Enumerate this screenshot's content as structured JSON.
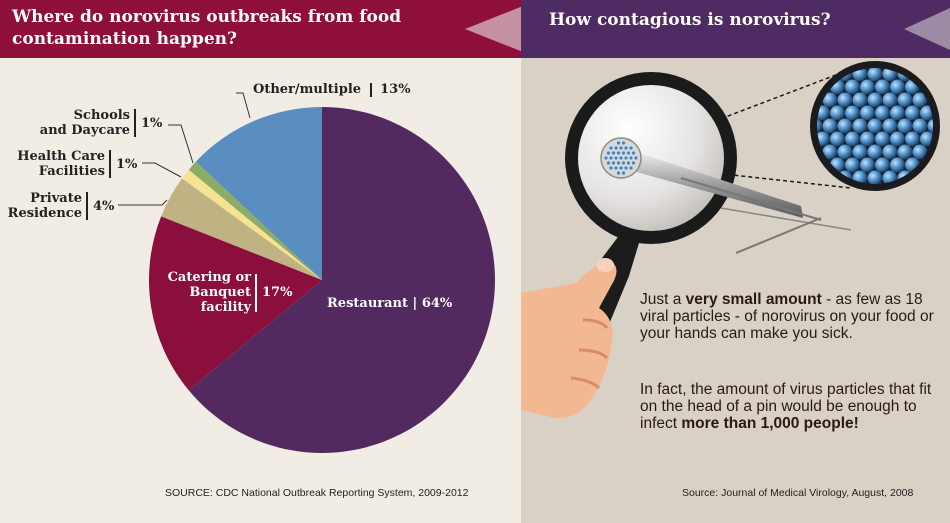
{
  "left_panel": {
    "title": "Where do norovirus outbreaks from food contamination happen?",
    "source": "SOURCE: CDC National Outbreak Reporting System, 2009-2012"
  },
  "right_panel": {
    "title": "How contagious is norovirus?",
    "paragraph1": {
      "before": "Just a ",
      "bold": "very small amount",
      "after": " - as few as 18 viral particles -  of norovirus on your food or your hands can make you sick."
    },
    "paragraph2": {
      "before": "In fact, the amount of virus particles that fit on the head of a pin would be enough to infect ",
      "bold": "more than 1,000 people!"
    },
    "source": "Source: Journal of Medical Virology, August, 2008",
    "illustration_icons": [
      "magnifying-glass-icon",
      "hand-icon",
      "pin-icon",
      "virus-particles-icon"
    ]
  },
  "colors": {
    "header_left": "#8d0f3a",
    "header_right": "#4f2b63",
    "panel_left_bg": "#f1ede4",
    "panel_right_bg": "#d9d1c6"
  },
  "chart_data": {
    "type": "pie",
    "title": "Where do norovirus outbreaks from food contamination happen?",
    "start": "top, clockwise",
    "slices": [
      {
        "label": "Restaurant",
        "pct_label": "64%",
        "value": 64,
        "color": "#532a60"
      },
      {
        "label": "Catering or Banquet facility",
        "pct_label": "17%",
        "value": 17,
        "color": "#8a0f3c"
      },
      {
        "label": "Private Residence",
        "pct_label": "4%",
        "value": 4,
        "color": "#c0b283"
      },
      {
        "label": "Health Care Facilities",
        "pct_label": "1%",
        "value": 1,
        "color": "#f6e391"
      },
      {
        "label": "Schools and Daycare",
        "pct_label": "1%",
        "value": 1,
        "color": "#8dac66"
      },
      {
        "label": "Other/multiple",
        "pct_label": "13%",
        "value": 13,
        "color": "#5b8ec0"
      }
    ],
    "labels_text": {
      "restaurant": "Restaurant",
      "catering_line1": "Catering or",
      "catering_line2": "Banquet",
      "catering_line3": "facility",
      "private_line1": "Private",
      "private_line2": "Residence",
      "health_line1": "Health Care",
      "health_line2": "Facilities",
      "schools_line1": "Schools",
      "schools_line2": "and Daycare",
      "other": "Other/multiple"
    }
  }
}
